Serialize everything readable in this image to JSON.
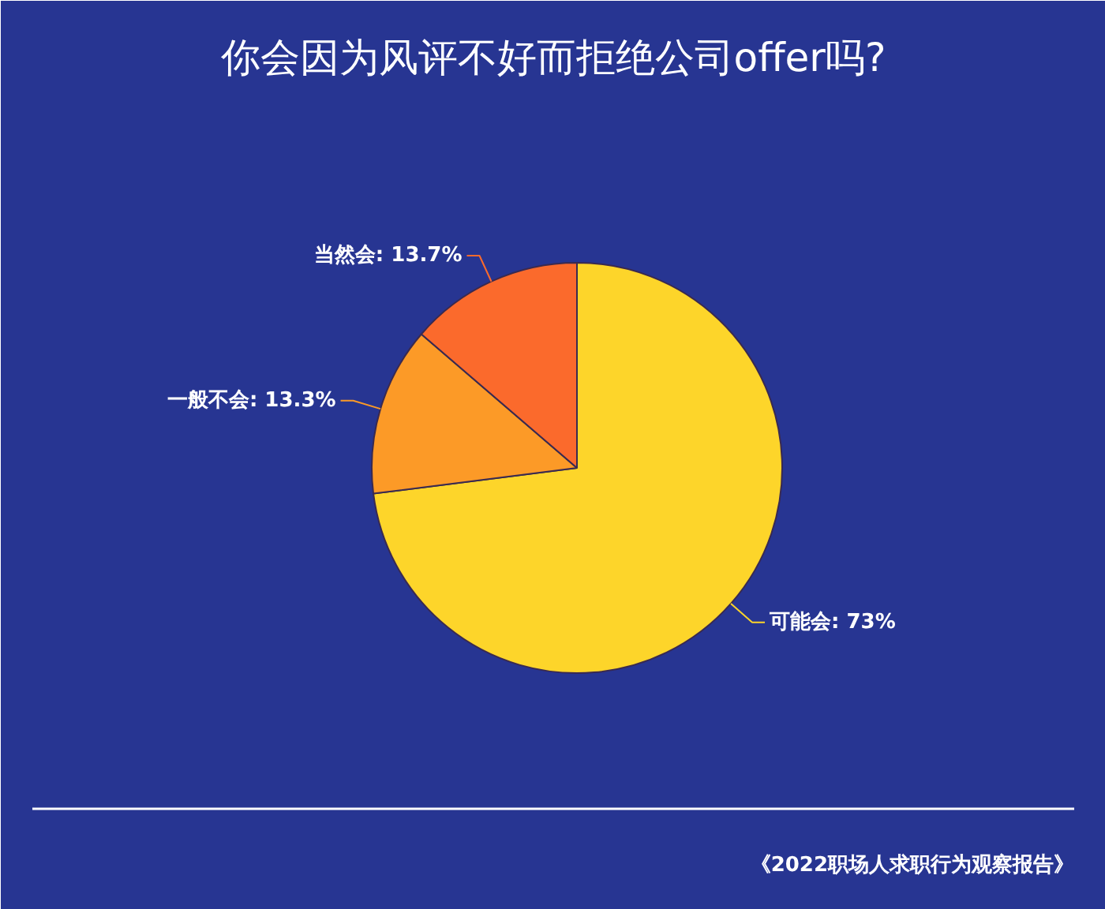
{
  "chart_data": {
    "type": "pie",
    "title": "你会因为风评不好而拒绝公司offer吗?",
    "categories": [
      "可能会",
      "一般不会",
      "当然会"
    ],
    "values": [
      73,
      13.3,
      13.7
    ],
    "value_labels": [
      "73%",
      "13.3%",
      "13.7%"
    ],
    "colors": [
      "#fdd52a",
      "#fc9a27",
      "#fb6a2c"
    ],
    "annotations": [
      "《2022职场人求职行为观察报告》"
    ]
  }
}
